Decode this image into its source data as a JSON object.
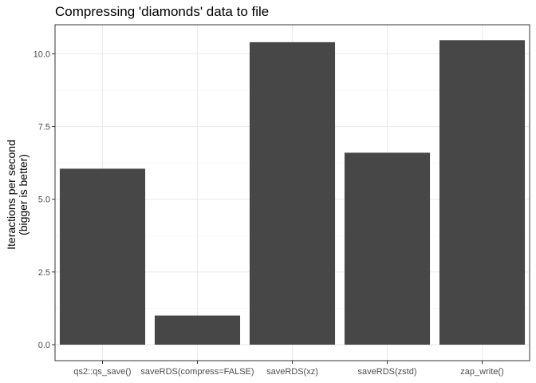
{
  "chart_data": {
    "type": "bar",
    "title": "Compressing 'diamonds' data to file",
    "xlabel": "",
    "ylabel_lines": [
      "Iteractions per second",
      "(bigger is better)"
    ],
    "categories": [
      "qs2::qs_save()",
      "saveRDS(compress=FALSE)",
      "saveRDS(xz)",
      "saveRDS(zstd)",
      "zap_write()"
    ],
    "values": [
      6.05,
      1.0,
      10.4,
      6.6,
      10.47
    ],
    "ylim": [
      -0.55,
      11.0
    ],
    "yticks": [
      0,
      2.5,
      5,
      7.5,
      10
    ],
    "ytick_labels": [
      "0.0",
      "2.5",
      "5.0",
      "7.5",
      "10.0"
    ],
    "grid": true,
    "legend": "none",
    "colors": {
      "bar": "#474747",
      "panel_border": "#333333",
      "grid_major": "#ebebeb",
      "grid_minor": "#f5f5f5",
      "tick_text": "#4d4d4d"
    }
  }
}
